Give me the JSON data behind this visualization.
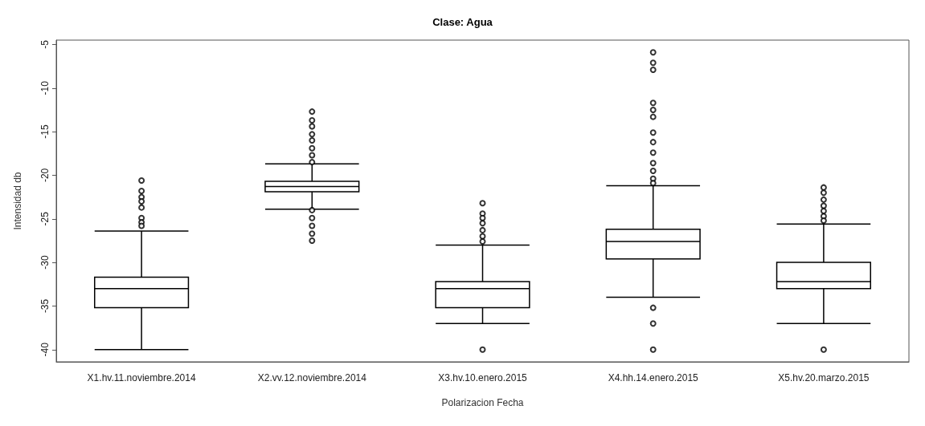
{
  "chart_data": {
    "type": "box",
    "title": "Clase: Agua",
    "xlabel": "Polarizacion Fecha",
    "ylabel": "Intensidad db",
    "categories": [
      "X1.hv.11.noviembre.2014",
      "X2.vv.12.noviembre.2014",
      "X3.hv.10.enero.2015",
      "X4.hh.14.enero.2015",
      "X5.hv.20.marzo.2015"
    ],
    "boxes": [
      {
        "low": -40,
        "q1": -35.2,
        "median": -33.0,
        "q3": -31.7,
        "high": -26.4,
        "outliers": [
          -20.6,
          -21.8,
          -22.5,
          -23.0,
          -23.7,
          -24.9,
          -25.4,
          -25.8
        ]
      },
      {
        "low": -23.9,
        "q1": -21.9,
        "median": -21.3,
        "q3": -20.7,
        "high": -18.7,
        "outliers": [
          -12.7,
          -13.7,
          -14.4,
          -15.3,
          -16.0,
          -16.9,
          -17.7,
          -18.5,
          -24.0,
          -24.9,
          -25.8,
          -26.7,
          -27.5
        ]
      },
      {
        "low": -37.0,
        "q1": -35.2,
        "median": -33.0,
        "q3": -32.2,
        "high": -28.0,
        "outliers": [
          -23.2,
          -24.4,
          -24.9,
          -25.5,
          -26.3,
          -27.0,
          -27.6,
          -40
        ]
      },
      {
        "low": -34.0,
        "q1": -29.6,
        "median": -27.6,
        "q3": -26.2,
        "high": -21.2,
        "outliers": [
          -5.9,
          -7.1,
          -7.9,
          -11.7,
          -12.5,
          -13.3,
          -15.1,
          -16.2,
          -17.4,
          -18.6,
          -19.5,
          -20.4,
          -20.9,
          -35.2,
          -37.0,
          -40
        ]
      },
      {
        "low": -37.0,
        "q1": -33.0,
        "median": -32.2,
        "q3": -30.0,
        "high": -25.6,
        "outliers": [
          -21.4,
          -22.0,
          -22.8,
          -23.5,
          -24.1,
          -24.7,
          -25.2,
          -40
        ]
      }
    ],
    "ylim": [
      -41.4,
      -4.5
    ],
    "yticks": [
      -5,
      -10,
      -15,
      -20,
      -25,
      -30,
      -35,
      -40
    ],
    "grid": false,
    "marker": "circle"
  }
}
